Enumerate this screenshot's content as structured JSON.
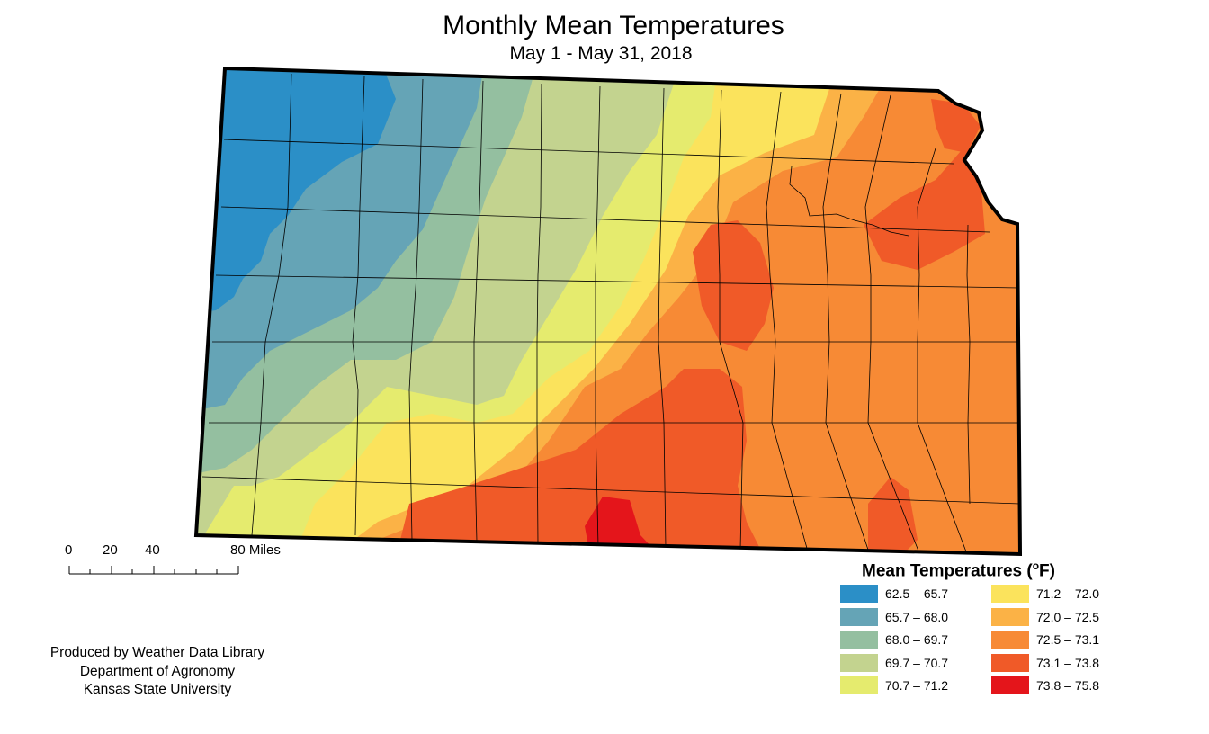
{
  "title": "Monthly Mean Temperatures",
  "subtitle": "May 1 - May 31, 2018",
  "legend": {
    "title": "Mean Temperatures (",
    "unit_degree": "o",
    "unit_tail": "F)",
    "classes": [
      {
        "label": "62.5 – 65.7",
        "color": "#2b8fc7"
      },
      {
        "label": "65.7 – 68.0",
        "color": "#65a4b6"
      },
      {
        "label": "68.0 – 69.7",
        "color": "#94bfa0"
      },
      {
        "label": "69.7 – 70.7",
        "color": "#c3d38f"
      },
      {
        "label": "70.7 – 71.2",
        "color": "#e5eb6e"
      },
      {
        "label": "71.2 – 72.0",
        "color": "#fbe35c"
      },
      {
        "label": "72.0 – 72.5",
        "color": "#fbb246"
      },
      {
        "label": "72.5 – 73.1",
        "color": "#f78a35"
      },
      {
        "label": "73.1 – 73.8",
        "color": "#f05a28"
      },
      {
        "label": "73.8 – 75.8",
        "color": "#e4151b"
      }
    ]
  },
  "scale_bar": {
    "ticks": [
      "0",
      "20",
      "40",
      "80 Miles"
    ]
  },
  "credits": [
    "Produced by Weather Data Library",
    "Department of Agronomy",
    "Kansas State University"
  ]
}
